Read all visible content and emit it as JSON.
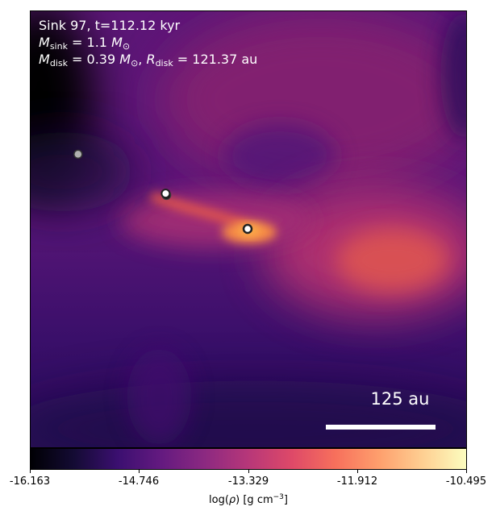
{
  "annotation": {
    "line1": "Sink 97, t=112.12 kyr",
    "msink_symbol": "M",
    "msink_sub": "sink",
    "msink_value": " = 1.1 ",
    "msun_symbol": "M",
    "msun_sub": "⊙",
    "mdisk_symbol": "M",
    "mdisk_sub": "disk",
    "mdisk_value": " = 0.39 ",
    "mdisk_sun_symbol": "M",
    "mdisk_sun_sub": "⊙",
    "separator": ", ",
    "rdisk_symbol": "R",
    "rdisk_sub": "disk",
    "rdisk_value": " = 121.37 au"
  },
  "scale_bar": {
    "label": "125 au"
  },
  "colorbar": {
    "colormap": "inferno",
    "ticks": [
      "-16.163",
      "-14.746",
      "-13.329",
      "-11.912",
      "-10.495"
    ],
    "label_prefix": "log(",
    "label_rho": "ρ",
    "label_mid": ") [g cm",
    "label_exp": "−3",
    "label_suffix": "]"
  },
  "colors": {
    "background_gas": "#4a1270",
    "dense_filament": "#f0653e",
    "void": "#000004",
    "text_overlay": "#ffffff"
  },
  "sinks": [
    {
      "name": "sink-particle-gray",
      "fill": "#b0b0b0"
    },
    {
      "name": "sink-particle-upper",
      "fill": "#ffffff"
    },
    {
      "name": "sink-particle-central",
      "fill": "#ffffff"
    }
  ]
}
